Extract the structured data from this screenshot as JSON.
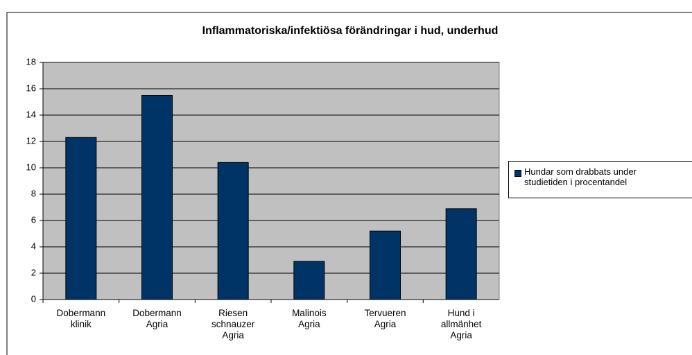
{
  "chart_data": {
    "type": "bar",
    "title": "Inflammatoriska/infektiösa förändringar i hud, underhud",
    "categories": [
      "Dobermann\nklinik",
      "Dobermann\nAgria",
      "Riesen\nschnauzer\nAgria",
      "Malinois\nAgria",
      "Tervueren\nAgria",
      "Hund i\nallmänhet\nAgria"
    ],
    "series": [
      {
        "name": "Hundar som drabbats under\nstudietiden i procentandel",
        "color": "#003366",
        "values": [
          12.3,
          15.5,
          10.4,
          2.9,
          5.2,
          6.9
        ]
      }
    ],
    "ylim": [
      0,
      18
    ],
    "yticks": [
      0,
      2,
      4,
      6,
      8,
      10,
      12,
      14,
      16,
      18
    ],
    "grid": true,
    "legend": "right"
  }
}
